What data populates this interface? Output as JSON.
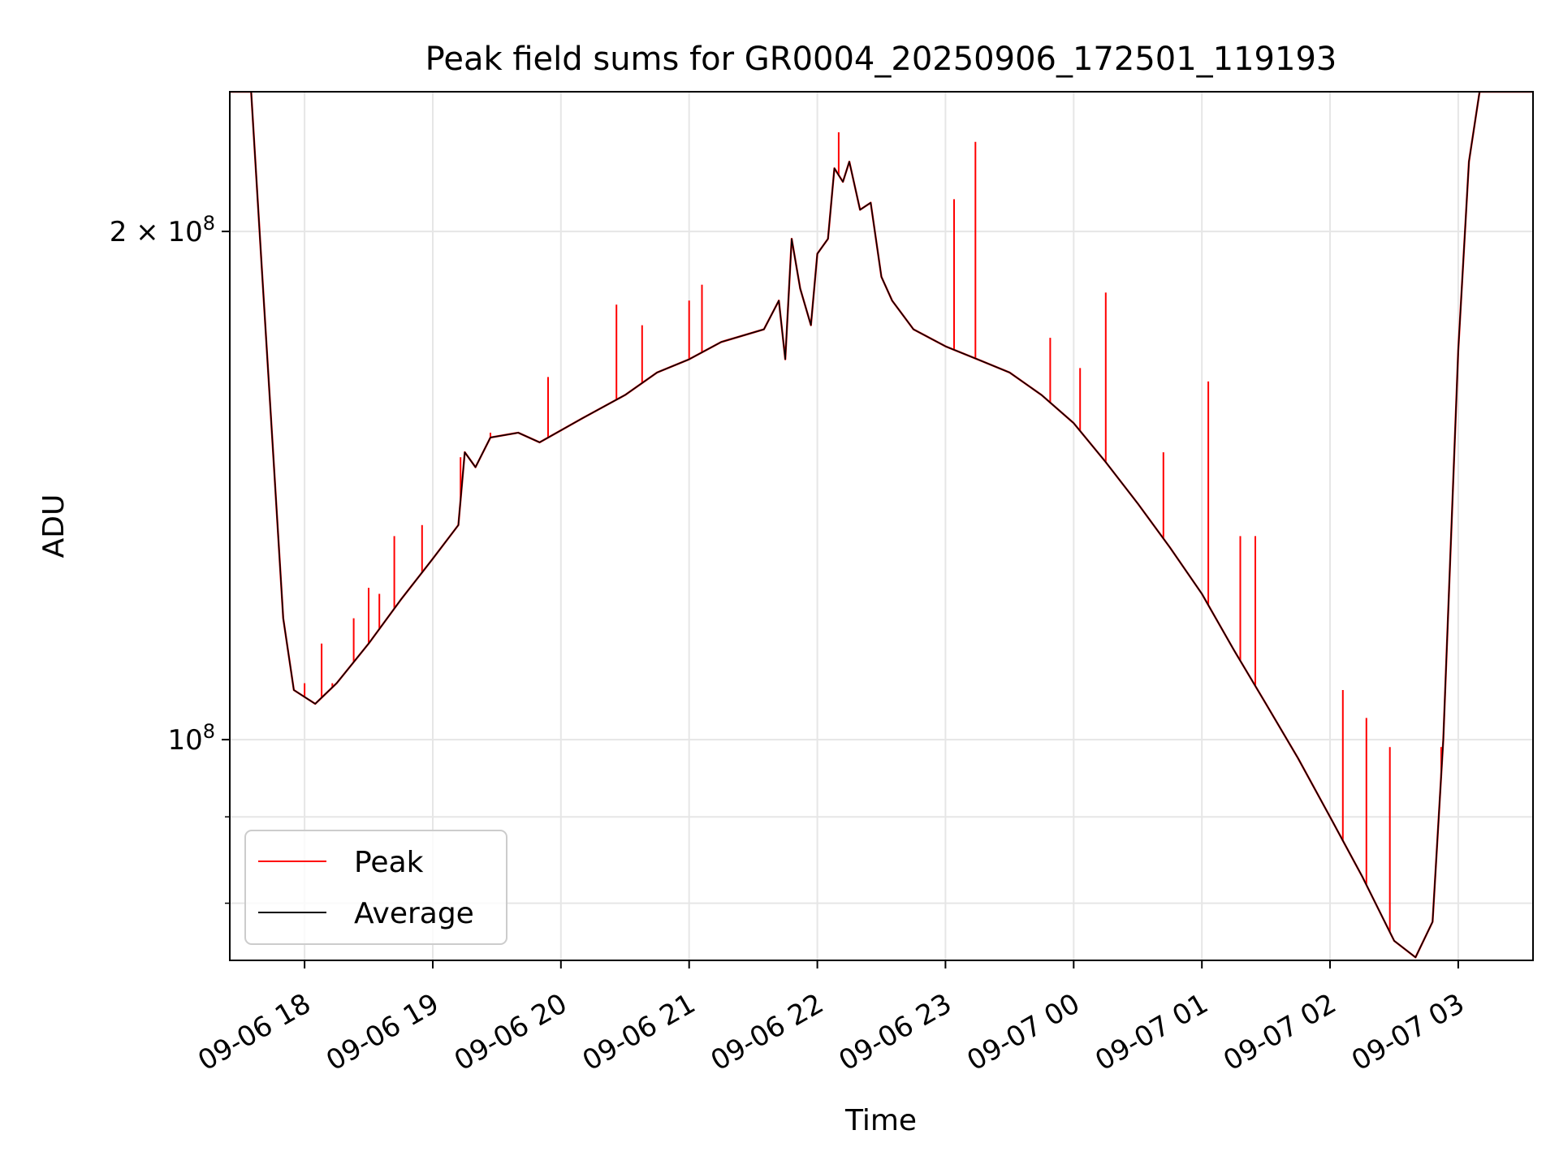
{
  "chart_data": {
    "type": "line",
    "title": "Peak field sums for GR0004_20250906_172501_119193",
    "xlabel": "Time",
    "ylabel": "ADU",
    "x_scale": "time",
    "y_scale": "log",
    "xlim": [
      "2025-09-06 17:25",
      "2025-09-07 03:35"
    ],
    "ylim": [
      74000000,
      242000000
    ],
    "grid": true,
    "legend_position": "lower-left",
    "x_ticks": [
      {
        "label": "09-06 18",
        "time": "2025-09-06 18:00"
      },
      {
        "label": "09-06 19",
        "time": "2025-09-06 19:00"
      },
      {
        "label": "09-06 20",
        "time": "2025-09-06 20:00"
      },
      {
        "label": "09-06 21",
        "time": "2025-09-06 21:00"
      },
      {
        "label": "09-06 22",
        "time": "2025-09-06 22:00"
      },
      {
        "label": "09-06 23",
        "time": "2025-09-06 23:00"
      },
      {
        "label": "09-07 00",
        "time": "2025-09-07 00:00"
      },
      {
        "label": "09-07 01",
        "time": "2025-09-07 01:00"
      },
      {
        "label": "09-07 02",
        "time": "2025-09-07 02:00"
      },
      {
        "label": "09-07 03",
        "time": "2025-09-07 03:00"
      }
    ],
    "y_major_ticks": [
      {
        "value": 100000000,
        "base": "10",
        "exp": "8",
        "mantissa": ""
      },
      {
        "value": 200000000,
        "base": "10",
        "exp": "8",
        "mantissa": "2 × "
      }
    ],
    "y_minor_ticks": [
      80000000,
      90000000
    ],
    "colors": {
      "peak": "#ff0000",
      "average": "#000000",
      "grid": "#e6e6e6"
    },
    "series": [
      {
        "name": "Average",
        "color": "#000000",
        "points": [
          [
            "2025-09-06 17:25",
            242000000
          ],
          [
            "2025-09-06 17:35",
            242000000
          ],
          [
            "2025-09-06 17:40",
            190000000
          ],
          [
            "2025-09-06 17:45",
            150000000
          ],
          [
            "2025-09-06 17:50",
            118000000
          ],
          [
            "2025-09-06 17:55",
            107000000
          ],
          [
            "2025-09-06 18:05",
            105000000
          ],
          [
            "2025-09-06 18:15",
            108000000
          ],
          [
            "2025-09-06 18:30",
            114000000
          ],
          [
            "2025-09-06 18:45",
            121000000
          ],
          [
            "2025-09-06 19:00",
            128000000
          ],
          [
            "2025-09-06 19:12",
            134000000
          ],
          [
            "2025-09-06 19:15",
            148000000
          ],
          [
            "2025-09-06 19:20",
            145000000
          ],
          [
            "2025-09-06 19:27",
            151000000
          ],
          [
            "2025-09-06 19:40",
            152000000
          ],
          [
            "2025-09-06 19:50",
            150000000
          ],
          [
            "2025-09-06 20:10",
            155000000
          ],
          [
            "2025-09-06 20:30",
            160000000
          ],
          [
            "2025-09-06 20:45",
            165000000
          ],
          [
            "2025-09-06 21:00",
            168000000
          ],
          [
            "2025-09-06 21:15",
            172000000
          ],
          [
            "2025-09-06 21:35",
            175000000
          ],
          [
            "2025-09-06 21:42",
            182000000
          ],
          [
            "2025-09-06 21:45",
            168000000
          ],
          [
            "2025-09-06 21:48",
            198000000
          ],
          [
            "2025-09-06 21:52",
            185000000
          ],
          [
            "2025-09-06 21:57",
            176000000
          ],
          [
            "2025-09-06 22:00",
            194000000
          ],
          [
            "2025-09-06 22:05",
            198000000
          ],
          [
            "2025-09-06 22:08",
            218000000
          ],
          [
            "2025-09-06 22:12",
            214000000
          ],
          [
            "2025-09-06 22:15",
            220000000
          ],
          [
            "2025-09-06 22:20",
            206000000
          ],
          [
            "2025-09-06 22:25",
            208000000
          ],
          [
            "2025-09-06 22:30",
            188000000
          ],
          [
            "2025-09-06 22:35",
            182000000
          ],
          [
            "2025-09-06 22:45",
            175000000
          ],
          [
            "2025-09-06 23:00",
            171000000
          ],
          [
            "2025-09-06 23:15",
            168000000
          ],
          [
            "2025-09-06 23:30",
            165000000
          ],
          [
            "2025-09-06 23:45",
            160000000
          ],
          [
            "2025-09-07 00:00",
            154000000
          ],
          [
            "2025-09-07 00:15",
            146000000
          ],
          [
            "2025-09-07 00:30",
            138000000
          ],
          [
            "2025-09-07 00:45",
            130000000
          ],
          [
            "2025-09-07 01:00",
            122000000
          ],
          [
            "2025-09-07 01:15",
            113000000
          ],
          [
            "2025-09-07 01:30",
            105000000
          ],
          [
            "2025-09-07 01:45",
            97500000
          ],
          [
            "2025-09-07 02:00",
            90000000
          ],
          [
            "2025-09-07 02:15",
            83000000
          ],
          [
            "2025-09-07 02:30",
            76000000
          ],
          [
            "2025-09-07 02:40",
            74300000
          ],
          [
            "2025-09-07 02:48",
            78000000
          ],
          [
            "2025-09-07 02:53",
            100000000
          ],
          [
            "2025-09-07 03:00",
            170000000
          ],
          [
            "2025-09-07 03:05",
            220000000
          ],
          [
            "2025-09-07 03:10",
            242000000
          ],
          [
            "2025-09-07 03:35",
            242000000
          ]
        ]
      },
      {
        "name": "Peak",
        "color": "#ff0000",
        "spikes": [
          [
            "2025-09-06 18:00",
            108000000
          ],
          [
            "2025-09-06 18:08",
            114000000
          ],
          [
            "2025-09-06 18:13",
            108000000
          ],
          [
            "2025-09-06 18:23",
            118000000
          ],
          [
            "2025-09-06 18:30",
            123000000
          ],
          [
            "2025-09-06 18:35",
            122000000
          ],
          [
            "2025-09-06 18:42",
            132000000
          ],
          [
            "2025-09-06 18:55",
            134000000
          ],
          [
            "2025-09-06 19:13",
            147000000
          ],
          [
            "2025-09-06 19:27",
            152000000
          ],
          [
            "2025-09-06 19:54",
            164000000
          ],
          [
            "2025-09-06 20:26",
            181000000
          ],
          [
            "2025-09-06 20:38",
            176000000
          ],
          [
            "2025-09-06 21:00",
            182000000
          ],
          [
            "2025-09-06 21:06",
            186000000
          ],
          [
            "2025-09-06 22:10",
            229000000
          ],
          [
            "2025-09-06 23:04",
            209000000
          ],
          [
            "2025-09-06 23:14",
            226000000
          ],
          [
            "2025-09-06 23:49",
            173000000
          ],
          [
            "2025-09-07 00:03",
            166000000
          ],
          [
            "2025-09-07 00:15",
            184000000
          ],
          [
            "2025-09-07 00:42",
            148000000
          ],
          [
            "2025-09-07 01:03",
            163000000
          ],
          [
            "2025-09-07 01:18",
            132000000
          ],
          [
            "2025-09-07 01:25",
            132000000
          ],
          [
            "2025-09-07 02:06",
            107000000
          ],
          [
            "2025-09-07 02:17",
            103000000
          ],
          [
            "2025-09-07 02:28",
            99000000
          ],
          [
            "2025-09-07 02:52",
            99000000
          ]
        ]
      }
    ],
    "legend": [
      {
        "name": "Peak",
        "color": "#ff0000"
      },
      {
        "name": "Average",
        "color": "#000000"
      }
    ]
  }
}
